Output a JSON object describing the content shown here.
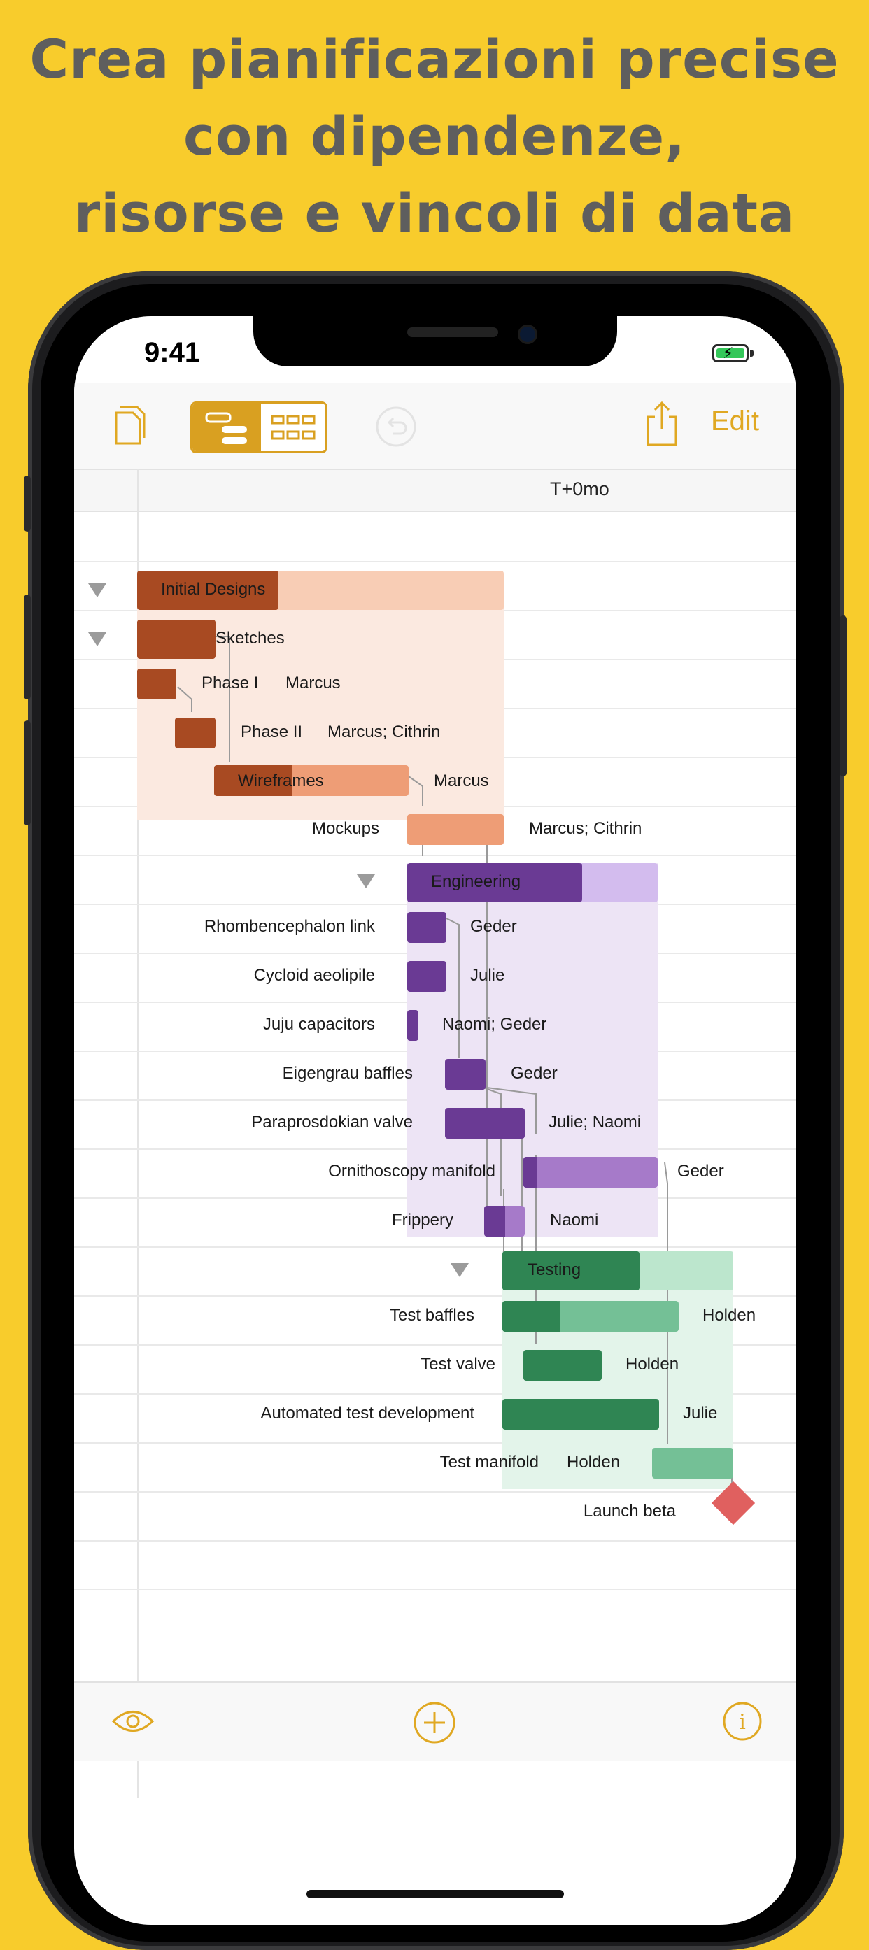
{
  "headline": {
    "line1": "Crea pianificazioni precise",
    "line2": "con dipendenze,",
    "line3": "risorse e vincoli di data"
  },
  "status_bar": {
    "time": "9:41"
  },
  "toolbar": {
    "documents_icon": "documents-icon",
    "view_toggle": [
      "gantt-view-icon",
      "resource-view-icon"
    ],
    "undo_icon": "undo-icon",
    "share_icon": "share-icon",
    "edit_label": "Edit"
  },
  "timeline_header": {
    "label": "T+0mo"
  },
  "colors": {
    "accent": "#E0A822",
    "design_dark": "#A84A22",
    "design_light": "#EE9D76",
    "design_bg": "#FBE9E0",
    "eng_dark": "#6A3A94",
    "eng_light": "#A67AC9",
    "eng_bg": "#EDE4F5",
    "test_dark": "#2F8553",
    "test_light": "#74C096",
    "test_bg": "#E3F4EA",
    "milestone": "#E0605F"
  },
  "groups": {
    "design": {
      "name": "Initial Designs"
    },
    "engineering": {
      "name": "Engineering"
    },
    "testing": {
      "name": "Testing"
    }
  },
  "tasks": {
    "sketches": {
      "name": "Sketches"
    },
    "phase1": {
      "name": "Phase I",
      "resource": "Marcus"
    },
    "phase2": {
      "name": "Phase II",
      "resource": "Marcus; Cithrin"
    },
    "wireframes": {
      "name": "Wireframes",
      "resource": "Marcus"
    },
    "mockups": {
      "name": "Mockups",
      "resource": "Marcus; Cithrin"
    },
    "rhomb": {
      "name": "Rhombencephalon link",
      "resource": "Geder"
    },
    "cycloid": {
      "name": "Cycloid aeolipile",
      "resource": "Julie"
    },
    "juju": {
      "name": "Juju capacitors",
      "resource": "Naomi; Geder"
    },
    "eigengrau": {
      "name": "Eigengrau baffles",
      "resource": "Geder"
    },
    "parapros": {
      "name": "Paraprosdokian valve",
      "resource": "Julie; Naomi"
    },
    "ornitho": {
      "name": "Ornithoscopy manifold",
      "resource": "Geder"
    },
    "frippery": {
      "name": "Frippery",
      "resource": "Naomi"
    },
    "test_baffles": {
      "name": "Test baffles",
      "resource": "Holden"
    },
    "test_valve": {
      "name": "Test valve",
      "resource": "Holden"
    },
    "auto_test": {
      "name": "Automated test development",
      "resource": "Julie"
    },
    "test_manifold": {
      "name": "Test manifold",
      "resource": "Holden"
    },
    "launch": {
      "name": "Launch beta"
    }
  },
  "bottom_toolbar": {
    "view_icon": "eye-icon",
    "add_icon": "plus-circle-icon",
    "info_icon": "info-icon"
  }
}
